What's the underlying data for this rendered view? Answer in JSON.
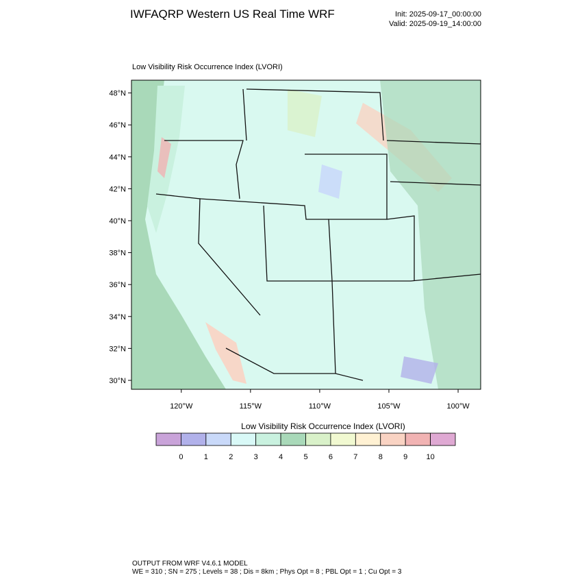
{
  "header": {
    "title": "IWFAQRP Western US Real Time WRF",
    "init": "Init: 2025-09-17_00:00:00",
    "valid": "Valid: 2025-09-19_14:00:00"
  },
  "map": {
    "title": "Low Visibility Risk Occurrence Index   (LVORI)",
    "xlim": [
      -123.6,
      -98.37
    ],
    "ylim": [
      29.44,
      48.8
    ],
    "yticks": [
      {
        "value": 30,
        "label": "30°N"
      },
      {
        "value": 32,
        "label": "32°N"
      },
      {
        "value": 34,
        "label": "34°N"
      },
      {
        "value": 36,
        "label": "36°N"
      },
      {
        "value": 38,
        "label": "38°N"
      },
      {
        "value": 40,
        "label": "40°N"
      },
      {
        "value": 42,
        "label": "42°N"
      },
      {
        "value": 44,
        "label": "44°N"
      },
      {
        "value": 46,
        "label": "46°N"
      },
      {
        "value": 48,
        "label": "48°N"
      }
    ],
    "xticks": [
      {
        "value": -120,
        "label": "120°W"
      },
      {
        "value": -115,
        "label": "115°W"
      },
      {
        "value": -110,
        "label": "110°W"
      },
      {
        "value": -105,
        "label": "105°W"
      },
      {
        "value": -100,
        "label": "100°W"
      }
    ]
  },
  "colorbar": {
    "title": "Low Visibility Risk Occurrence Index  (LVORI)",
    "colors": [
      "#c9a3d9",
      "#b1b1ea",
      "#c9d9f9",
      "#d9f9f7",
      "#c9f1df",
      "#a9d9b9",
      "#d9f1c9",
      "#f1f9d1",
      "#fff1d3",
      "#f9d3c3",
      "#f1b3b3",
      "#dfa9d3"
    ],
    "labels": [
      "0",
      "1",
      "2",
      "3",
      "4",
      "5",
      "6",
      "7",
      "8",
      "9",
      "10"
    ]
  },
  "footer": {
    "line1": "OUTPUT FROM WRF V4.6.1 MODEL",
    "line2": "WE = 310 ; SN = 275 ; Levels = 38 ; Dis = 8km ; Phys Opt = 8 ; PBL Opt = 1 ; Cu Opt = 3"
  }
}
